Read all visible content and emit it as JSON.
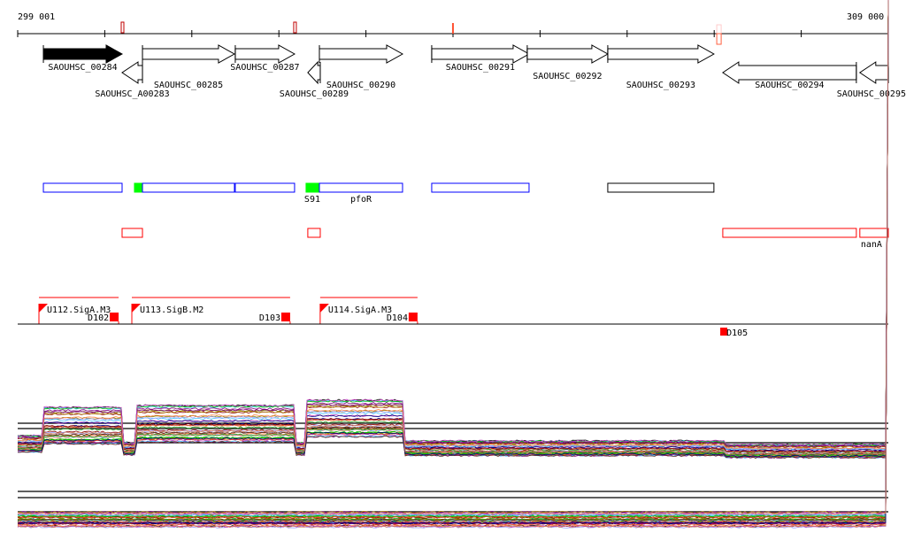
{
  "ruler": {
    "start_label": "299 001",
    "end_label": "309 000",
    "start": 299001,
    "end": 309000
  },
  "markers": [
    {
      "pos": 300200,
      "color": "#c00000"
    },
    {
      "pos": 302181,
      "color": "#c00000"
    },
    {
      "pos": 304000,
      "color": "#ff5030"
    },
    {
      "pos": 307050,
      "color": "#ff6040"
    }
  ],
  "genes": [
    {
      "name": "SAOUHSC_00284",
      "start": 299296,
      "end": 300200,
      "strand": "+",
      "filled": true,
      "row": 0,
      "label_row": 0
    },
    {
      "name": "SAOUHSC_A00283",
      "start": 300200,
      "end": 300434,
      "strand": "-",
      "filled": false,
      "row": 1,
      "label_row": 2
    },
    {
      "name": "SAOUHSC_00285",
      "start": 300434,
      "end": 301490,
      "strand": "+",
      "filled": false,
      "row": 0,
      "label_row": 1
    },
    {
      "name": "SAOUHSC_00287",
      "start": 301500,
      "end": 302181,
      "strand": "+",
      "filled": false,
      "row": 0,
      "label_row": 0
    },
    {
      "name": "SAOUHSC_00289",
      "start": 302333,
      "end": 302476,
      "strand": "-",
      "filled": false,
      "row": 1,
      "label_row": 2
    },
    {
      "name": "SAOUHSC_00290",
      "start": 302466,
      "end": 303421,
      "strand": "+",
      "filled": false,
      "row": 0,
      "label_row": 1
    },
    {
      "name": "SAOUHSC_00291",
      "start": 303756,
      "end": 304874,
      "strand": "+",
      "filled": false,
      "row": 0,
      "label_row": 0
    },
    {
      "name": "SAOUHSC_00292",
      "start": 304853,
      "end": 305778,
      "strand": "+",
      "filled": false,
      "row": 0,
      "label_row": 0.5
    },
    {
      "name": "SAOUHSC_00293",
      "start": 305778,
      "end": 306997,
      "strand": "+",
      "filled": false,
      "row": 0,
      "label_row": 1
    },
    {
      "name": "SAOUHSC_00294",
      "start": 307099,
      "end": 308633,
      "strand": "-",
      "filled": false,
      "row": 1,
      "label_row": 1
    },
    {
      "name": "SAOUHSC_00295",
      "start": 308673,
      "end": 309000,
      "strand": "-",
      "filled": false,
      "row": 1,
      "label_row": 2
    }
  ],
  "annotation_boxes": [
    {
      "start": 299296,
      "end": 300200,
      "color": "#0000ff"
    },
    {
      "start": 300342,
      "end": 300434,
      "color": "#00ff00",
      "fill": true
    },
    {
      "start": 300434,
      "end": 301490,
      "color": "#0000ff"
    },
    {
      "start": 301500,
      "end": 302181,
      "color": "#0000ff"
    },
    {
      "start": 302313,
      "end": 302466,
      "color": "#00ff00",
      "fill": true,
      "label": "S91"
    },
    {
      "start": 302466,
      "end": 303421,
      "color": "#0000ff",
      "label": "pfoR"
    },
    {
      "start": 303756,
      "end": 304874,
      "color": "#0000ff"
    },
    {
      "start": 305778,
      "end": 306997,
      "color": "#000000"
    }
  ],
  "red_boxes": [
    {
      "start": 300200,
      "end": 300434
    },
    {
      "start": 302333,
      "end": 302476
    },
    {
      "start": 307099,
      "end": 308633
    },
    {
      "start": 308673,
      "end": 309000,
      "label": "nanA"
    }
  ],
  "transcription_units": [
    {
      "name": "U112.SigA.M3",
      "start": 299245,
      "end": 300160,
      "terminator": "D102"
    },
    {
      "name": "U113.SigB.M2",
      "start": 300312,
      "end": 302130,
      "terminator": "D103"
    },
    {
      "name": "U114.SigA.M3",
      "start": 302475,
      "end": 303593,
      "terminator": "D104"
    }
  ],
  "extra_terminators": [
    {
      "name": "D105",
      "pos": 307070
    }
  ],
  "colors": {
    "accent_red": "#ff0000",
    "axis": "#000000"
  }
}
